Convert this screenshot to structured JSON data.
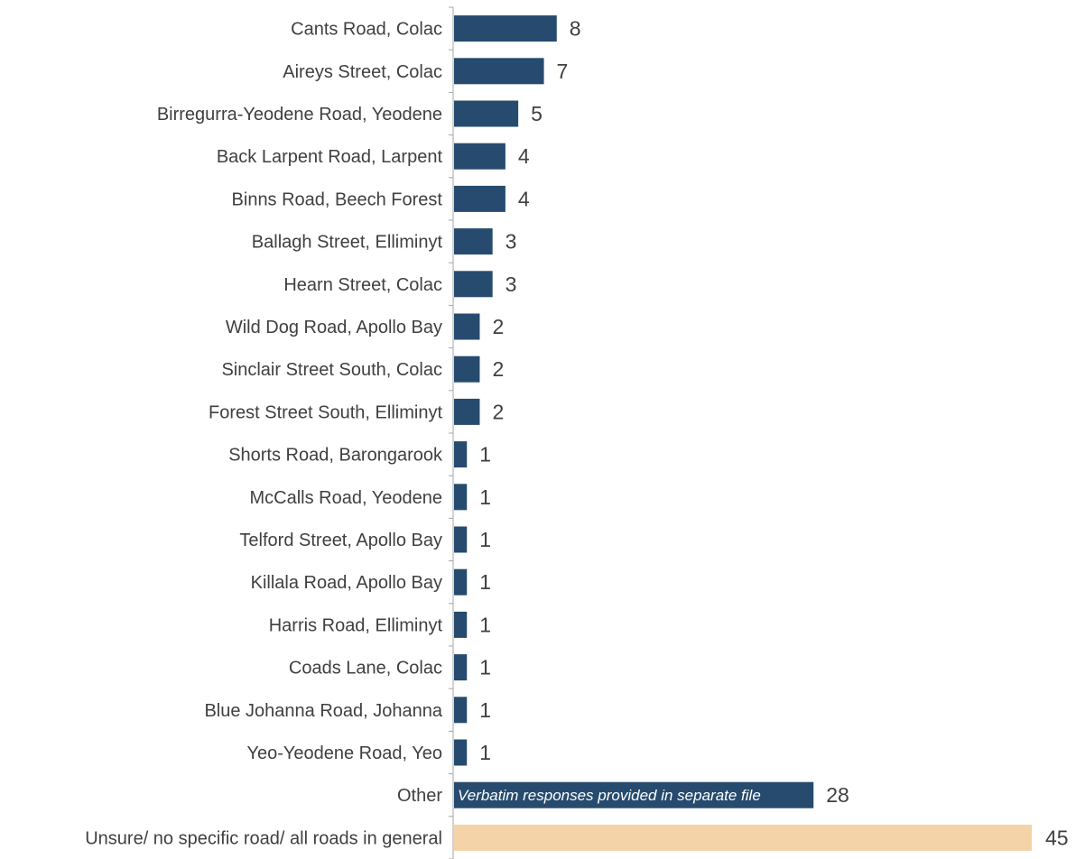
{
  "chart_data": {
    "type": "bar",
    "orientation": "horizontal",
    "title": "",
    "xlabel": "",
    "ylabel": "",
    "xlim": [
      0,
      45
    ],
    "grid": false,
    "legend": "none",
    "colors": {
      "primary": "#264B6E",
      "highlight": "#F5D3A8"
    },
    "categories": [
      "Cants Road, Colac",
      "Aireys Street, Colac",
      "Birregurra-Yeodene Road, Yeodene",
      "Back Larpent Road, Larpent",
      "Binns Road, Beech Forest",
      "Ballagh Street, Elliminyt",
      "Hearn Street, Colac",
      "Wild Dog Road, Apollo Bay",
      "Sinclair Street South, Colac",
      "Forest Street South, Elliminyt",
      "Shorts Road, Barongarook",
      "McCalls Road, Yeodene",
      "Telford Street, Apollo Bay",
      "Killala Road, Apollo Bay",
      "Harris Road, Elliminyt",
      "Coads Lane, Colac",
      "Blue Johanna Road, Johanna",
      "Yeo-Yeodene Road, Yeo",
      "Other",
      "Unsure/ no specific road/ all roads in general"
    ],
    "values": [
      8,
      7,
      5,
      4,
      4,
      3,
      3,
      2,
      2,
      2,
      1,
      1,
      1,
      1,
      1,
      1,
      1,
      1,
      28,
      45
    ],
    "highlighted_category": "Unsure/ no specific road/ all roads in general",
    "annotations": [
      {
        "category": "Other",
        "text": "Verbatim responses provided in separate file"
      }
    ]
  }
}
